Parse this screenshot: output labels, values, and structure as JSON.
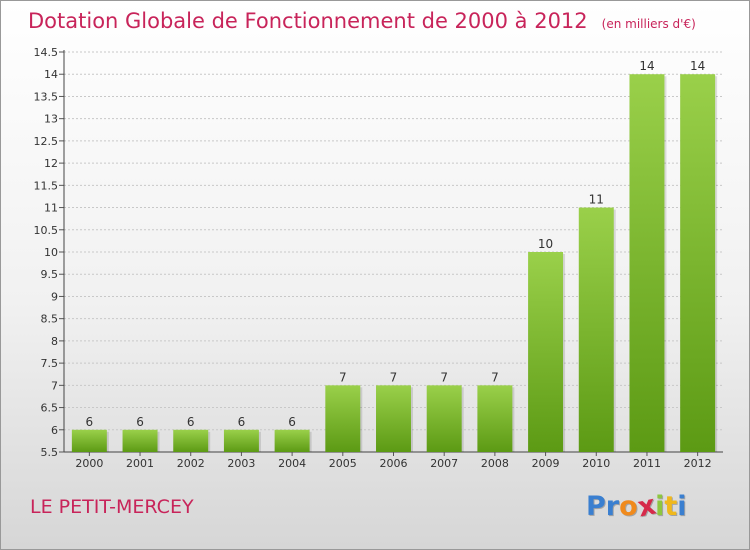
{
  "title": "Dotation Globale de Fonctionnement de 2000 à 2012",
  "unit_label": "(en milliers d'€)",
  "commune": "LE PETIT-MERCEY",
  "logo": {
    "text": "Proxiti",
    "letters": [
      {
        "ch": "P",
        "color": "#3a7fd0"
      },
      {
        "ch": "r",
        "color": "#3a7fd0"
      },
      {
        "ch": "o",
        "color": "#f08a1c"
      },
      {
        "ch": "x",
        "color": "#d62a4a"
      },
      {
        "ch": "i",
        "color": "#8dc63f"
      },
      {
        "ch": "t",
        "color": "#f0b81c"
      },
      {
        "ch": "i",
        "color": "#3a7fd0"
      }
    ]
  },
  "colors": {
    "title": "#c8245a",
    "bar_light": "#9ad04a",
    "bar_dark": "#5c9a14",
    "grid": "#c8c8c8"
  },
  "chart_data": {
    "type": "bar",
    "title": "Dotation Globale de Fonctionnement de 2000 à 2012",
    "categories": [
      "2000",
      "2001",
      "2002",
      "2003",
      "2004",
      "2005",
      "2006",
      "2007",
      "2008",
      "2009",
      "2010",
      "2011",
      "2012"
    ],
    "values": [
      6,
      6,
      6,
      6,
      6,
      7,
      7,
      7,
      7,
      10,
      11,
      14,
      14
    ],
    "data_labels": [
      "6",
      "6",
      "6",
      "6",
      "6",
      "7",
      "7",
      "7",
      "7",
      "10",
      "11",
      "14",
      "14"
    ],
    "ylim": [
      5.5,
      14.5
    ],
    "yticks": [
      5.5,
      6,
      6.5,
      7,
      7.5,
      8,
      8.5,
      9,
      9.5,
      10,
      10.5,
      11,
      11.5,
      12,
      12.5,
      13,
      13.5,
      14,
      14.5
    ],
    "ytick_labels": [
      "5.5",
      "6",
      "6.5",
      "7",
      "7.5",
      "8",
      "8.5",
      "9",
      "9.5",
      "10",
      "10.5",
      "11",
      "11.5",
      "12",
      "12.5",
      "13",
      "13.5",
      "14",
      "14.5"
    ],
    "grid": true,
    "xlabel": "",
    "ylabel": ""
  }
}
